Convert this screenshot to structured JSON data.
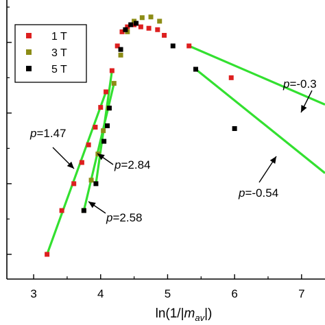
{
  "chart_data": {
    "type": "scatter",
    "xlabel": "ln(1/|m_av|)",
    "xlabel_parts": {
      "prefix": "ln(1/|",
      "var": "m",
      "sub": "av",
      "suffix": "|)"
    },
    "xlim": [
      2.6,
      7.35
    ],
    "x_ticks": [
      "3",
      "4",
      "5",
      "6",
      "7"
    ],
    "x_tick_values": [
      3,
      4,
      5,
      6,
      7
    ],
    "legend_position": "top-left",
    "grid": false,
    "series": [
      {
        "name": "1 T",
        "color": "#dd1f1f",
        "x": [
          3.2,
          3.42,
          3.6,
          3.72,
          3.82,
          3.92,
          4.0,
          4.08,
          4.17,
          4.25,
          4.32,
          4.4,
          4.5,
          4.6,
          4.72,
          4.85,
          4.95,
          5.32,
          5.95
        ],
        "y": [
          0.0,
          0.62,
          1.0,
          1.3,
          1.55,
          1.8,
          2.08,
          2.3,
          2.6,
          2.95,
          3.15,
          3.22,
          3.25,
          3.22,
          3.2,
          3.18,
          3.1,
          2.95,
          2.5
        ]
      },
      {
        "name": "3 T",
        "color": "#8c8c16",
        "x": [
          3.75,
          3.86,
          3.96,
          4.04,
          4.12,
          4.2,
          4.3,
          4.4,
          4.5,
          4.62,
          4.75,
          4.88
        ],
        "y": [
          0.62,
          1.05,
          1.42,
          1.75,
          2.07,
          2.42,
          2.82,
          3.15,
          3.3,
          3.35,
          3.36,
          3.3
        ]
      },
      {
        "name": "5 T",
        "color": "#000000",
        "x": [
          3.75,
          3.93,
          4.05,
          4.1,
          4.13,
          4.3,
          4.37,
          4.45,
          4.53,
          5.08,
          5.42,
          6.0
        ],
        "y": [
          0.62,
          1.0,
          1.6,
          1.82,
          2.07,
          2.9,
          3.18,
          3.25,
          3.27,
          2.95,
          2.62,
          1.78
        ]
      }
    ],
    "fit_lines": [
      {
        "p": "1.47",
        "x": [
          3.2,
          4.08
        ],
        "y": [
          0.0,
          2.3
        ]
      },
      {
        "p": "2.84",
        "x": [
          3.93,
          4.17
        ],
        "y": [
          1.0,
          2.6
        ]
      },
      {
        "p": "2.58",
        "x": [
          3.75,
          4.2
        ],
        "y": [
          0.62,
          2.42
        ]
      },
      {
        "p": "-0.3",
        "x": [
          5.32,
          7.35
        ],
        "y": [
          2.95,
          2.12
        ]
      },
      {
        "p": "-0.54",
        "x": [
          5.42,
          7.35
        ],
        "y": [
          2.62,
          1.15
        ]
      }
    ],
    "fit_color": "#33e030",
    "annotations": [
      {
        "var": "p",
        "text": "=1.47"
      },
      {
        "var": "p",
        "text": "=2.84"
      },
      {
        "var": "p",
        "text": "=2.58"
      },
      {
        "var": "p",
        "text": "=-0.3"
      },
      {
        "var": "p",
        "text": "=-0.54"
      }
    ]
  }
}
